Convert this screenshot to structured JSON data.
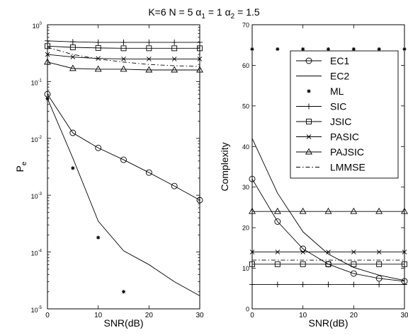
{
  "title_parts": {
    "pre": "K=6 N = 5  ",
    "a1_sym": "α",
    "a1_sub": "1",
    "a1_val": " = 1 ",
    "a2_sym": "α",
    "a2_sub": "2",
    "a2_val": " = 1.5"
  },
  "chart_data": [
    {
      "type": "line",
      "yscale": "log",
      "xlabel": "SNR(dB)",
      "ylabel_main": "P",
      "ylabel_sub": "e",
      "xlim": [
        0,
        30
      ],
      "ylim": [
        1e-05,
        1
      ],
      "xticks": [
        "0",
        "10",
        "20",
        "30"
      ],
      "xtick_values": [
        0,
        10,
        20,
        30
      ],
      "ytick_base": "10",
      "yticks": [
        {
          "value": 1,
          "exp": "0"
        },
        {
          "value": 0.1,
          "exp": "-1"
        },
        {
          "value": 0.01,
          "exp": "-2"
        },
        {
          "value": 0.001,
          "exp": "-3"
        },
        {
          "value": 0.0001,
          "exp": "-4"
        },
        {
          "value": 1e-05,
          "exp": "-5"
        }
      ],
      "series": [
        {
          "key": "EC1",
          "marker": "circle",
          "line": "solid",
          "x": [
            0,
            5,
            10,
            15,
            20,
            25,
            30
          ],
          "y": [
            0.06,
            0.0125,
            0.0068,
            0.0042,
            0.0025,
            0.00145,
            0.00082
          ]
        },
        {
          "key": "EC2",
          "marker": "none",
          "line": "solid",
          "x": [
            0,
            5,
            10,
            15,
            20,
            25,
            30
          ],
          "y": [
            0.05,
            0.0045,
            0.00035,
            0.000105,
            6e-05,
            3e-05,
            1.7e-05
          ]
        },
        {
          "key": "ML",
          "marker": "star",
          "line": "none",
          "x": [
            0,
            5,
            10,
            15
          ],
          "y": [
            0.05,
            0.003,
            0.00018,
            2e-05
          ]
        },
        {
          "key": "SIC",
          "marker": "plus",
          "line": "solid",
          "x": [
            0,
            5,
            10,
            15,
            20,
            25,
            30
          ],
          "y": [
            0.52,
            0.5,
            0.49,
            0.49,
            0.49,
            0.49,
            0.49
          ]
        },
        {
          "key": "JSIC",
          "marker": "square",
          "line": "solid",
          "x": [
            0,
            5,
            10,
            15,
            20,
            25,
            30
          ],
          "y": [
            0.42,
            0.4,
            0.39,
            0.385,
            0.385,
            0.385,
            0.385
          ]
        },
        {
          "key": "PASIC",
          "marker": "x",
          "line": "solid",
          "x": [
            0,
            5,
            10,
            15,
            20,
            25,
            30
          ],
          "y": [
            0.3,
            0.27,
            0.255,
            0.25,
            0.25,
            0.25,
            0.25
          ]
        },
        {
          "key": "PAJSIC",
          "marker": "triangle",
          "line": "solid",
          "x": [
            0,
            5,
            10,
            15,
            20,
            25,
            30
          ],
          "y": [
            0.22,
            0.17,
            0.165,
            0.165,
            0.16,
            0.16,
            0.16
          ]
        },
        {
          "key": "LMMSE",
          "marker": "none",
          "line": "dashdot",
          "x": [
            0,
            5,
            10,
            15,
            20,
            25,
            30
          ],
          "y": [
            0.4,
            0.3,
            0.25,
            0.22,
            0.2,
            0.19,
            0.185
          ]
        }
      ]
    },
    {
      "type": "line",
      "yscale": "linear",
      "xlabel": "SNR(dB)",
      "ylabel": "Complexity",
      "xlim": [
        0,
        30
      ],
      "ylim": [
        0,
        70
      ],
      "xticks": [
        "0",
        "10",
        "20",
        "30"
      ],
      "xtick_values": [
        0,
        10,
        20,
        30
      ],
      "yticks": [
        "0",
        "10",
        "20",
        "30",
        "40",
        "50",
        "60",
        "70"
      ],
      "ytick_values": [
        0,
        10,
        20,
        30,
        40,
        50,
        60,
        70
      ],
      "legend": {
        "placement": "top-right",
        "entries": [
          "EC1",
          "EC2",
          "ML",
          "SIC",
          "JSIC",
          "PASIC",
          "PAJSIC",
          "LMMSE"
        ]
      },
      "series": [
        {
          "key": "EC1",
          "marker": "circle",
          "line": "solid",
          "x": [
            0,
            5,
            10,
            15,
            20,
            25,
            30
          ],
          "y": [
            32,
            21.5,
            14.8,
            11,
            8.7,
            7.5,
            6.8
          ]
        },
        {
          "key": "EC2",
          "marker": "none",
          "line": "solid",
          "x": [
            0,
            5,
            10,
            15,
            20,
            25,
            30
          ],
          "y": [
            42,
            28.5,
            19,
            13.5,
            10.2,
            8.3,
            7
          ]
        },
        {
          "key": "ML",
          "marker": "star",
          "line": "none",
          "x": [
            0,
            5,
            10,
            15,
            20,
            25,
            30
          ],
          "y": [
            64,
            64,
            64,
            64,
            64,
            64,
            64
          ]
        },
        {
          "key": "SIC",
          "marker": "plus",
          "line": "solid",
          "x": [
            0,
            5,
            10,
            15,
            20,
            25,
            30
          ],
          "y": [
            6,
            6,
            6,
            6,
            6,
            6,
            6
          ]
        },
        {
          "key": "JSIC",
          "marker": "square",
          "line": "solid",
          "x": [
            0,
            5,
            10,
            15,
            20,
            25,
            30
          ],
          "y": [
            11,
            11,
            11,
            11,
            11,
            11,
            11
          ]
        },
        {
          "key": "PASIC",
          "marker": "x",
          "line": "solid",
          "x": [
            0,
            5,
            10,
            15,
            20,
            25,
            30
          ],
          "y": [
            14,
            14,
            14,
            14,
            14,
            14,
            14
          ]
        },
        {
          "key": "PAJSIC",
          "marker": "triangle",
          "line": "solid",
          "x": [
            0,
            5,
            10,
            15,
            20,
            25,
            30
          ],
          "y": [
            24,
            24,
            24,
            24,
            24,
            24,
            24
          ]
        },
        {
          "key": "LMMSE",
          "marker": "none",
          "line": "dashdot",
          "x": [
            0,
            5,
            10,
            15,
            20,
            25,
            30
          ],
          "y": [
            12,
            12,
            12,
            12,
            12,
            12,
            12
          ]
        }
      ]
    }
  ]
}
